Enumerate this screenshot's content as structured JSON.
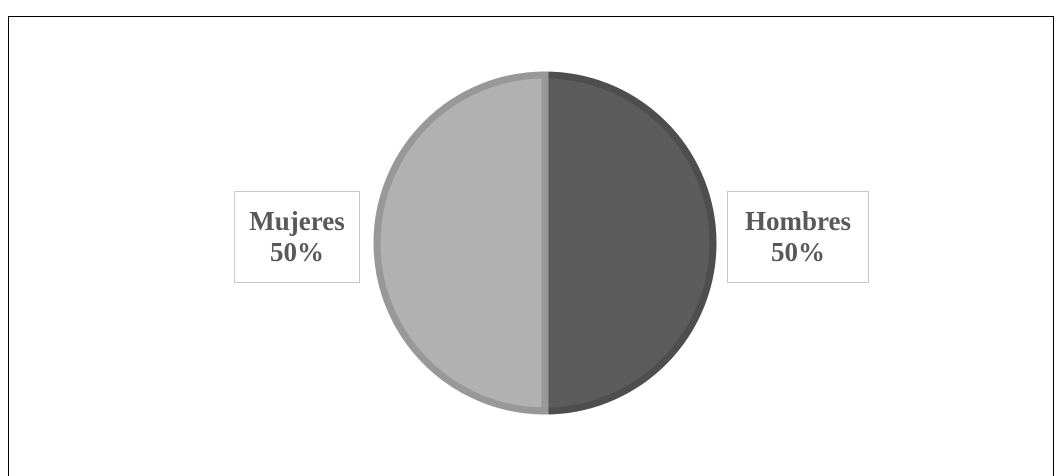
{
  "chart_data": {
    "type": "pie",
    "title": "",
    "slices": [
      {
        "label": "Hombres",
        "value": 50,
        "display": "50%",
        "color": "#5c5c5c",
        "edge_color": "#4e4e4e"
      },
      {
        "label": "Mujeres",
        "value": 50,
        "display": "50%",
        "color": "#b1b1b1",
        "edge_color": "#989898"
      }
    ],
    "start_angle_deg": 0,
    "direction": "clockwise",
    "legend": "none",
    "data_labels": "outside-boxed"
  }
}
